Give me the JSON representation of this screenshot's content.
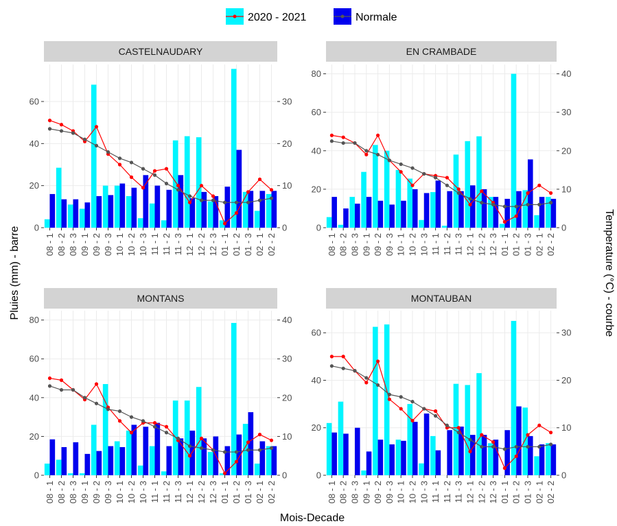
{
  "figure": {
    "xlabel": "Mois-Decade",
    "ylabel_left": "Pluies (mm) - barre",
    "ylabel_right": "Temperature (°C) - courbe",
    "legend": [
      {
        "label": "2020 - 2021",
        "bar_color": "#00F5FF",
        "line_color": "#FF0000"
      },
      {
        "label": "Normale",
        "bar_color": "#0000EE",
        "line_color": "#555555"
      }
    ],
    "strip_bg": "#D3D3D3",
    "grid_color": "#EBEBEB"
  },
  "chart_data": [
    {
      "type": "bar",
      "title": "CASTELNAUDARY",
      "categories": [
        "08 - 1",
        "08 - 2",
        "08 - 3",
        "09 - 1",
        "09 - 2",
        "09 - 3",
        "10 - 1",
        "10 - 2",
        "10 - 3",
        "11 - 1",
        "11 - 2",
        "11 - 3",
        "12 - 1",
        "12 - 2",
        "12 - 3",
        "01 - 1",
        "01 - 2",
        "01 - 3",
        "02 - 1",
        "02 - 2"
      ],
      "ylim": [
        0,
        75
      ],
      "yticks": [
        0,
        20,
        40,
        60
      ],
      "temp_ylim": [
        0,
        37.5
      ],
      "temp_ticks": [
        0,
        10,
        20,
        30
      ],
      "series": [
        {
          "name": "2020 - 2021",
          "kind": "bar",
          "values": [
            4,
            28.5,
            11,
            9,
            68,
            20,
            20,
            15,
            4.5,
            11.5,
            3.5,
            41.5,
            43.5,
            43,
            12.5,
            3.5,
            75.5,
            17,
            8,
            16
          ]
        },
        {
          "name": "Normale",
          "kind": "bar",
          "values": [
            16,
            13.5,
            13.5,
            12,
            15,
            15.5,
            21,
            19,
            25,
            20,
            18,
            25,
            14,
            17,
            15,
            19.5,
            37,
            17.5,
            17.5,
            17.5
          ]
        },
        {
          "name": "2020 - 2021",
          "kind": "line",
          "values": [
            25.5,
            24.5,
            23,
            20.5,
            24,
            17.5,
            15,
            12,
            9.5,
            13.5,
            14,
            10,
            6,
            10,
            7.5,
            1,
            3.5,
            8.5,
            11.5,
            9
          ]
        },
        {
          "name": "Normale",
          "kind": "line",
          "values": [
            23.5,
            23,
            22.5,
            21,
            19.5,
            18,
            16.5,
            15.5,
            14,
            12.5,
            10.5,
            9,
            7.5,
            6.5,
            6.5,
            6,
            6,
            6,
            6.5,
            7
          ]
        }
      ]
    },
    {
      "type": "bar",
      "title": "EN CRAMBADE",
      "categories": [
        "08 - 1",
        "08 - 2",
        "08 - 3",
        "09 - 1",
        "09 - 2",
        "09 - 3",
        "10 - 1",
        "10 - 2",
        "10 - 3",
        "11 - 1",
        "11 - 2",
        "11 - 3",
        "12 - 1",
        "12 - 2",
        "12 - 3",
        "01 - 1",
        "01 - 2",
        "01 - 3",
        "02 - 1",
        "02 - 2"
      ],
      "ylim": [
        0,
        82
      ],
      "yticks": [
        0,
        20,
        40,
        60,
        80
      ],
      "temp_ylim": [
        0,
        41
      ],
      "temp_ticks": [
        0,
        10,
        20,
        30,
        40
      ],
      "series": [
        {
          "name": "2020 - 2021",
          "kind": "bar",
          "values": [
            5.5,
            1.5,
            16,
            29,
            43,
            40,
            30,
            25.5,
            4,
            18.5,
            1,
            38,
            45,
            47.5,
            16,
            2,
            80,
            19.5,
            6.5,
            16
          ]
        },
        {
          "name": "Normale",
          "kind": "bar",
          "values": [
            16,
            10,
            12.5,
            16,
            14,
            12,
            14,
            20,
            18,
            24.5,
            19,
            19,
            22,
            20,
            16,
            15,
            19,
            35.5,
            16,
            15
          ]
        },
        {
          "name": "2020 - 2021",
          "kind": "line",
          "values": [
            24,
            23.5,
            22,
            19,
            24,
            17.5,
            14.5,
            11,
            14,
            13.5,
            13,
            10,
            6,
            9.5,
            6.5,
            1.5,
            3,
            9,
            11,
            9
          ]
        },
        {
          "name": "Normale",
          "kind": "line",
          "values": [
            22.5,
            22,
            22,
            20,
            19,
            17.5,
            16.5,
            15.5,
            14,
            13,
            11,
            9,
            7.5,
            6.5,
            6,
            5.5,
            5.5,
            6,
            6,
            6.5
          ]
        }
      ]
    },
    {
      "type": "bar",
      "title": "MONTANS",
      "categories": [
        "08 - 1",
        "08 - 2",
        "08 - 3",
        "09 - 1",
        "09 - 2",
        "09 - 3",
        "10 - 1",
        "10 - 2",
        "10 - 3",
        "11 - 1",
        "11 - 2",
        "11 - 3",
        "12 - 1",
        "12 - 2",
        "12 - 3",
        "01 - 1",
        "01 - 2",
        "01 - 3",
        "02 - 1",
        "02 - 2"
      ],
      "ylim": [
        0,
        82
      ],
      "yticks": [
        0,
        20,
        40,
        60,
        80
      ],
      "temp_ylim": [
        0,
        41
      ],
      "temp_ticks": [
        0,
        10,
        20,
        30,
        40
      ],
      "series": [
        {
          "name": "2020 - 2021",
          "kind": "bar",
          "values": [
            6,
            8,
            1,
            1,
            26,
            47,
            17.5,
            23,
            5,
            15,
            2,
            38.5,
            38.5,
            45.5,
            12,
            1,
            78.5,
            26.5,
            6,
            15
          ]
        },
        {
          "name": "Normale",
          "kind": "bar",
          "values": [
            18.5,
            14.5,
            17,
            11,
            12.5,
            15,
            14.5,
            26,
            25,
            27,
            15,
            19,
            23,
            19,
            20,
            15,
            21,
            32.5,
            17.5,
            15
          ]
        },
        {
          "name": "2020 - 2021",
          "kind": "line",
          "values": [
            25,
            24.5,
            22,
            19.5,
            23.5,
            17.5,
            14,
            11,
            13.5,
            13.5,
            12.5,
            9,
            5,
            9.5,
            6.5,
            0.5,
            3.5,
            8.5,
            10.5,
            9
          ]
        },
        {
          "name": "Normale",
          "kind": "line",
          "values": [
            23,
            22,
            22,
            20,
            18.5,
            17,
            16.5,
            15,
            14,
            12.5,
            11,
            9.5,
            7.5,
            7,
            6.5,
            6,
            6,
            6.5,
            6.5,
            7
          ]
        }
      ]
    },
    {
      "type": "bar",
      "title": "MONTAUBAN",
      "categories": [
        "08 - 1",
        "08 - 2",
        "08 - 3",
        "09 - 1",
        "09 - 2",
        "09 - 3",
        "10 - 1",
        "10 - 2",
        "10 - 3",
        "11 - 1",
        "11 - 2",
        "11 - 3",
        "12 - 1",
        "12 - 2",
        "12 - 3",
        "01 - 1",
        "01 - 2",
        "01 - 3",
        "02 - 1",
        "02 - 2"
      ],
      "ylim": [
        0,
        67
      ],
      "yticks": [
        0,
        20,
        40,
        60
      ],
      "temp_ylim": [
        0,
        33.5
      ],
      "temp_ticks": [
        0,
        10,
        20,
        30
      ],
      "series": [
        {
          "name": "2020 - 2021",
          "kind": "bar",
          "values": [
            22,
            31,
            0,
            2,
            62.5,
            63.5,
            15,
            30,
            5,
            16.5,
            0,
            38.5,
            38,
            43,
            13.5,
            0,
            65,
            28.5,
            8,
            13.5
          ]
        },
        {
          "name": "Normale",
          "kind": "bar",
          "values": [
            18,
            17.5,
            20,
            10,
            15,
            13,
            14.5,
            22.5,
            26,
            10.5,
            19,
            20.5,
            17,
            17,
            15,
            19,
            29,
            16.5,
            13,
            13
          ]
        },
        {
          "name": "2020 - 2021",
          "kind": "line",
          "values": [
            25,
            25,
            22,
            19.5,
            24,
            16,
            14,
            11.5,
            14,
            13.5,
            10,
            10,
            5,
            8.5,
            7,
            1.5,
            4,
            8.5,
            10.5,
            9
          ]
        },
        {
          "name": "Normale",
          "kind": "line",
          "values": [
            23,
            22.5,
            22,
            20.5,
            19,
            17,
            16.5,
            15.5,
            14,
            12.5,
            10.5,
            9,
            7.5,
            6,
            6,
            5.5,
            6,
            6,
            6,
            6.5
          ]
        }
      ]
    }
  ]
}
